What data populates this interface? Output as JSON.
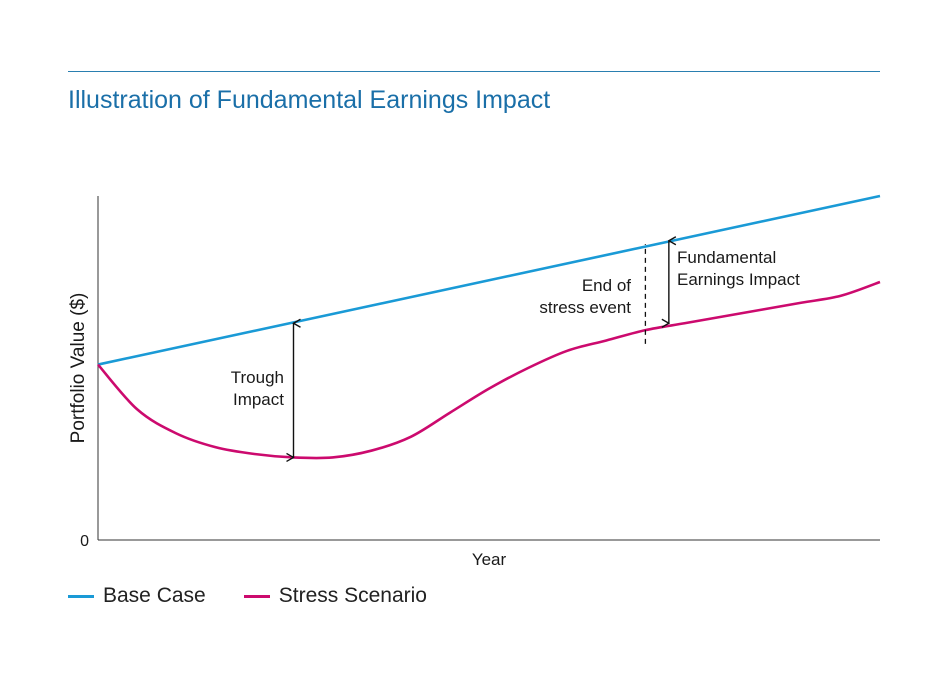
{
  "title": "Illustration of Fundamental Earnings Impact",
  "colors": {
    "base": "#1a9ad6",
    "stress": "#cc0a6e",
    "title": "#1a6fa8",
    "rule": "#2a7fb0"
  },
  "chart_data": {
    "type": "line",
    "title": "Illustration of Fundamental Earnings Impact",
    "xlabel": "Year",
    "ylabel": "Portfolio Value ($)",
    "y_tick_labels": [
      "0"
    ],
    "xlim": [
      0,
      10
    ],
    "ylim": [
      0,
      100
    ],
    "grid": false,
    "legend_position": "bottom-left",
    "series": [
      {
        "name": "Base Case",
        "x": [
          0,
          10
        ],
        "y": [
          51,
          100
        ]
      },
      {
        "name": "Stress Scenario",
        "x": [
          0,
          0.5,
          1,
          1.5,
          2,
          2.5,
          3,
          3.5,
          4,
          4.5,
          5,
          5.5,
          6,
          6.5,
          7,
          7.5,
          8,
          8.5,
          9,
          9.5,
          10
        ],
        "y": [
          51,
          38,
          31,
          27,
          25,
          24,
          24,
          26,
          30,
          37,
          44,
          50,
          55,
          58,
          61,
          63,
          65,
          67,
          69,
          71,
          75
        ]
      }
    ],
    "annotations": {
      "trough": {
        "label_lines": [
          "Trough",
          "Impact"
        ],
        "x": 2.5,
        "y_from": 63,
        "y_to": 24
      },
      "stress_end": {
        "label_lines": [
          "End of",
          "stress event"
        ],
        "x": 7,
        "y_from": 57,
        "y_to": 86
      },
      "fundamental": {
        "label_lines": [
          "Fundamental",
          "Earnings Impact"
        ],
        "x": 7.3,
        "y_from": 87,
        "y_to": 63
      }
    }
  }
}
